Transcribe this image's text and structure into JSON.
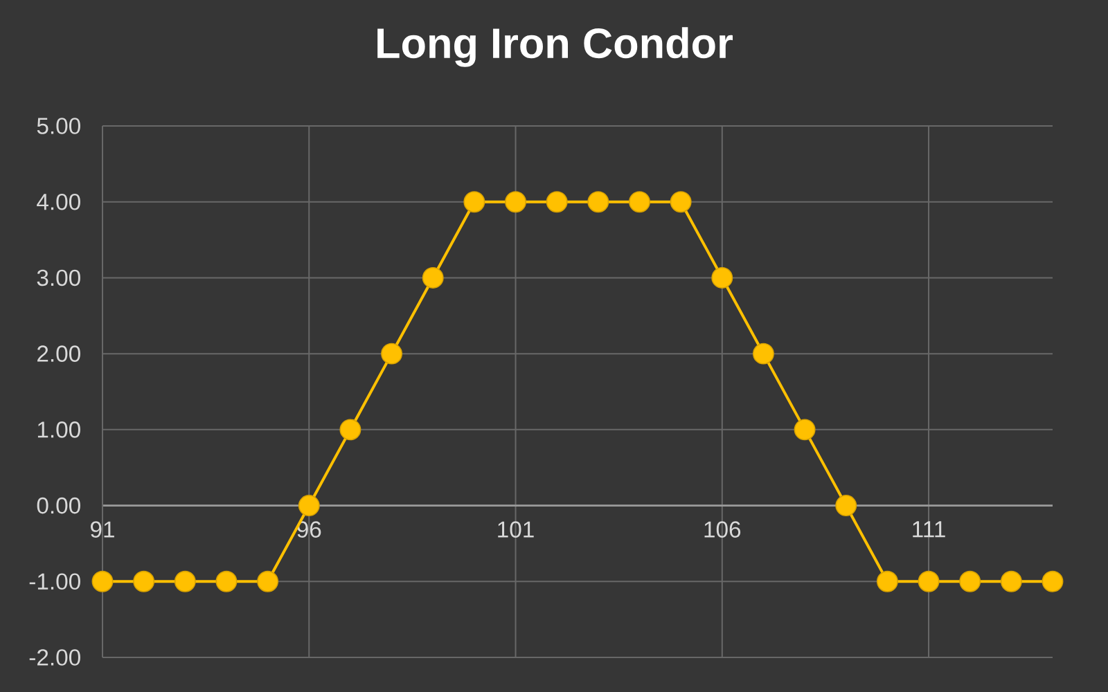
{
  "chart_data": {
    "type": "line",
    "title": "Long Iron Condor",
    "x": [
      91,
      92,
      93,
      94,
      95,
      96,
      97,
      98,
      99,
      100,
      101,
      102,
      103,
      104,
      105,
      106,
      107,
      108,
      109,
      110,
      111,
      112,
      113,
      114
    ],
    "values": [
      -1,
      -1,
      -1,
      -1,
      -1,
      0,
      1,
      2,
      3,
      4,
      4,
      4,
      4,
      4,
      4,
      3,
      2,
      1,
      0,
      -1,
      -1,
      -1,
      -1,
      -1
    ],
    "color": "#ffc000",
    "xlim": [
      91,
      114
    ],
    "xticks": [
      91,
      96,
      101,
      106,
      111
    ],
    "ylim": [
      -2,
      5
    ],
    "yticks": [
      {
        "value": -2,
        "label": "-2.00"
      },
      {
        "value": -1,
        "label": "-1.00"
      },
      {
        "value": 0,
        "label": "0.00"
      },
      {
        "value": 1,
        "label": "1.00"
      },
      {
        "value": 2,
        "label": "2.00"
      },
      {
        "value": 3,
        "label": "3.00"
      },
      {
        "value": 4,
        "label": "4.00"
      },
      {
        "value": 5,
        "label": "5.00"
      }
    ],
    "grid": true,
    "marker": "circle",
    "line_style": "solid"
  }
}
